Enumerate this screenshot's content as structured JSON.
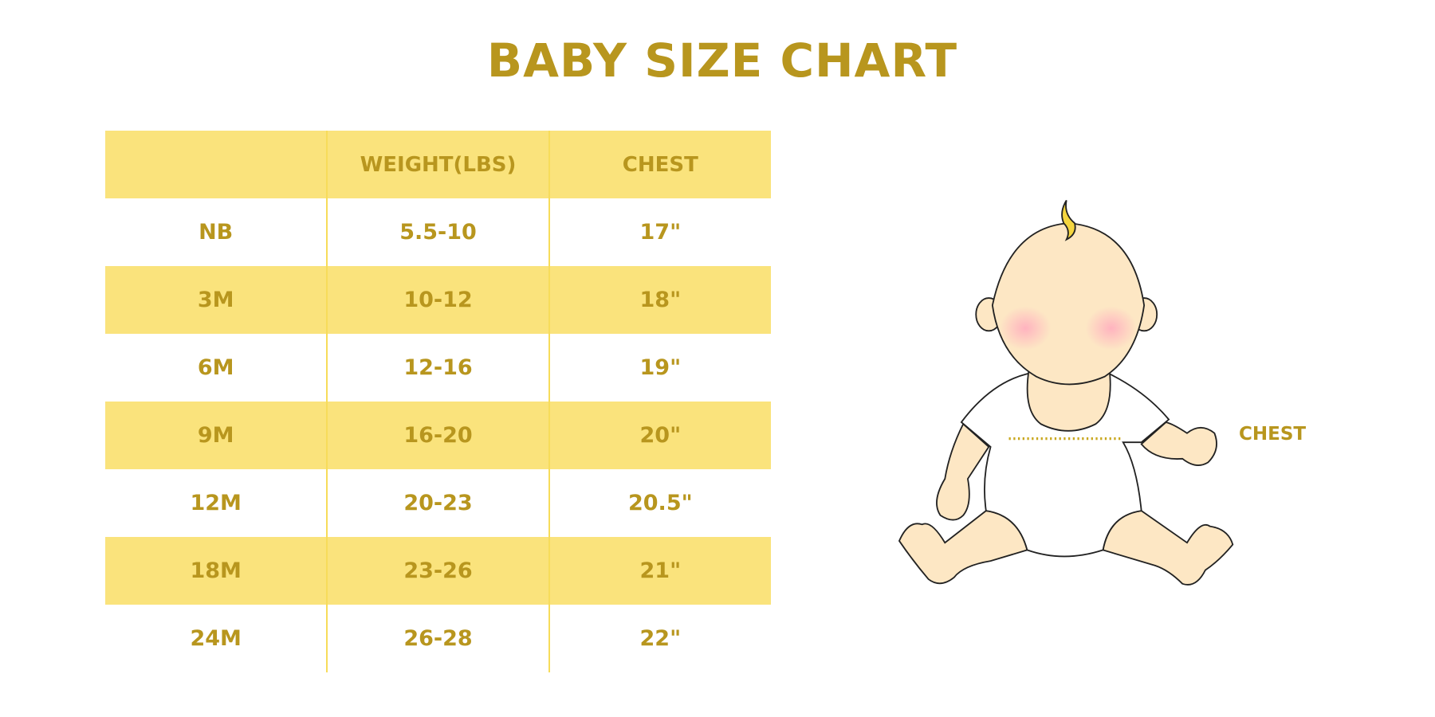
{
  "title": "BABY SIZE CHART",
  "table": {
    "headers": [
      "",
      "WEIGHT(LBS)",
      "CHEST"
    ],
    "rows": [
      [
        "NB",
        "5.5-10",
        "17\""
      ],
      [
        "3M",
        "10-12",
        "18\""
      ],
      [
        "6M",
        "12-16",
        "19\""
      ],
      [
        "9M",
        "16-20",
        "20\""
      ],
      [
        "12M",
        "20-23",
        "20.5\""
      ],
      [
        "18M",
        "23-26",
        "21\""
      ],
      [
        "24M",
        "26-28",
        "22\""
      ]
    ]
  },
  "illustration": {
    "chest_label": "CHEST"
  },
  "colors": {
    "text": "#b8961e",
    "band": "#fae37c",
    "divider": "#f7dc5a",
    "skin": "#fde7c4"
  }
}
